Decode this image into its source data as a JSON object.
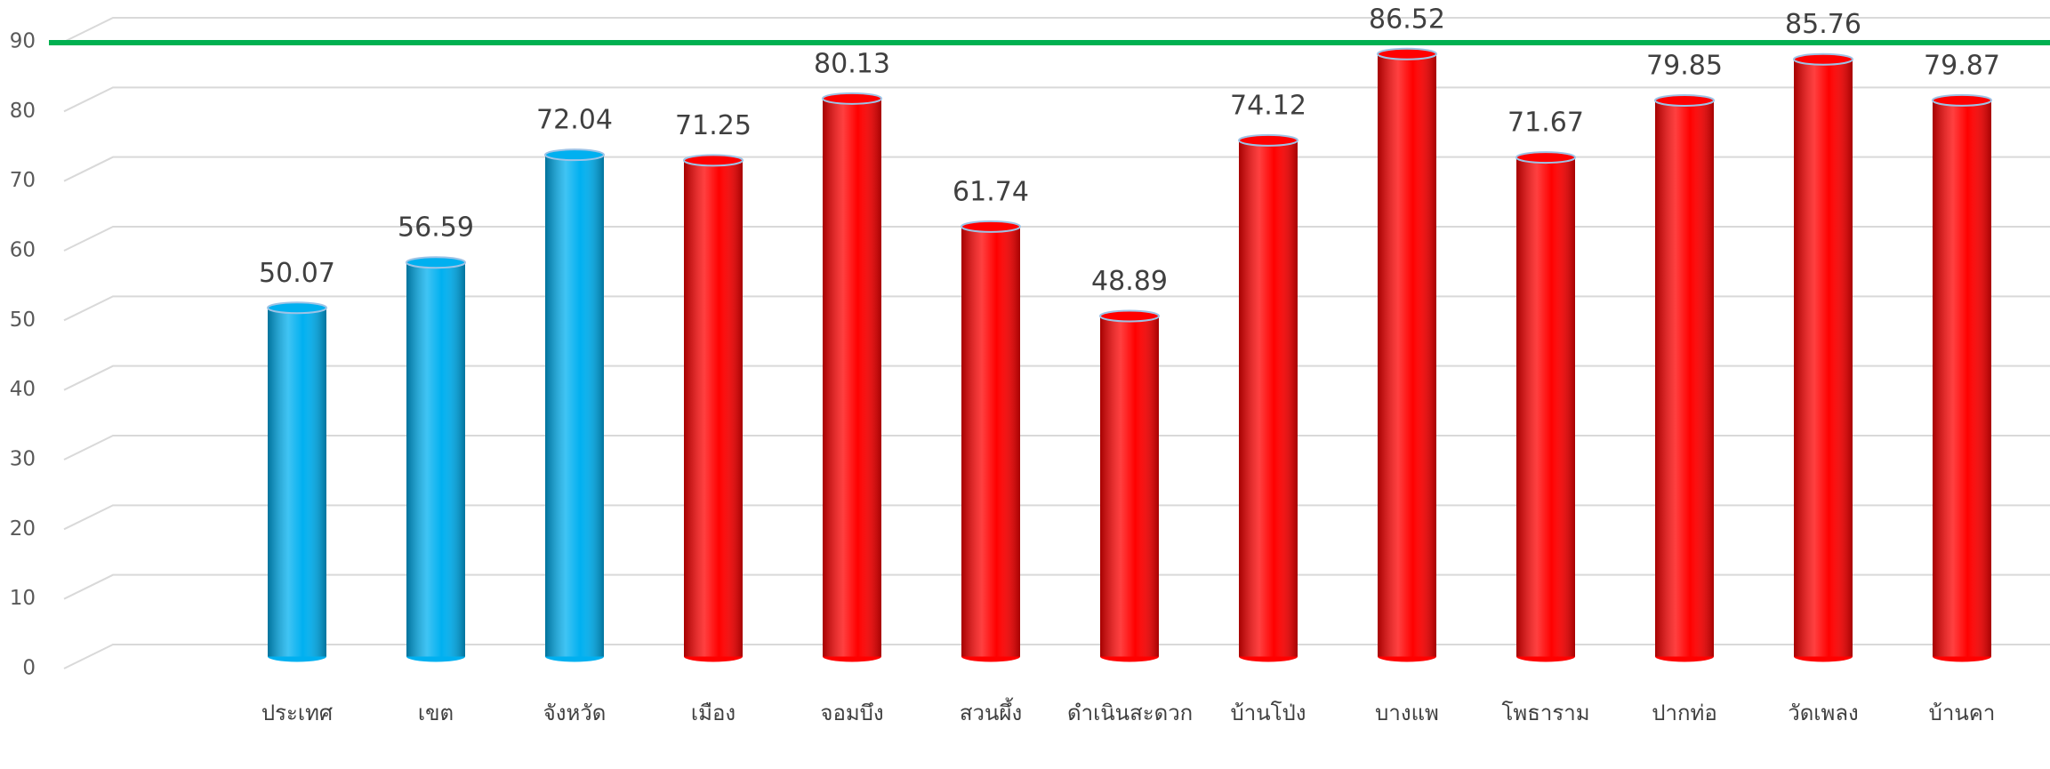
{
  "chart_data": {
    "type": "bar",
    "categories": [
      "ประเทศ",
      "เขต",
      "จังหวัด",
      "เมือง",
      "จอมบึง",
      "สวนผึ้ง",
      "ดำเนินสะดวก",
      "บ้านโป่ง",
      "บางแพ",
      "โพธาราม",
      "ปากท่อ",
      "วัดเพลง",
      "บ้านคา"
    ],
    "values": [
      50.07,
      56.59,
      72.04,
      71.25,
      80.13,
      61.74,
      48.89,
      74.12,
      86.52,
      71.67,
      79.85,
      85.76,
      79.87
    ],
    "colors": [
      "#00b0f0",
      "#00b0f0",
      "#00b0f0",
      "#ff0000",
      "#ff0000",
      "#ff0000",
      "#ff0000",
      "#ff0000",
      "#ff0000",
      "#ff0000",
      "#ff0000",
      "#ff0000",
      "#ff0000"
    ],
    "ylim": [
      0,
      90
    ],
    "yticks": [
      0,
      10,
      20,
      30,
      40,
      50,
      60,
      70,
      80,
      90
    ],
    "grid": true,
    "reference_line": {
      "value": 90,
      "color": "#00b050"
    }
  }
}
